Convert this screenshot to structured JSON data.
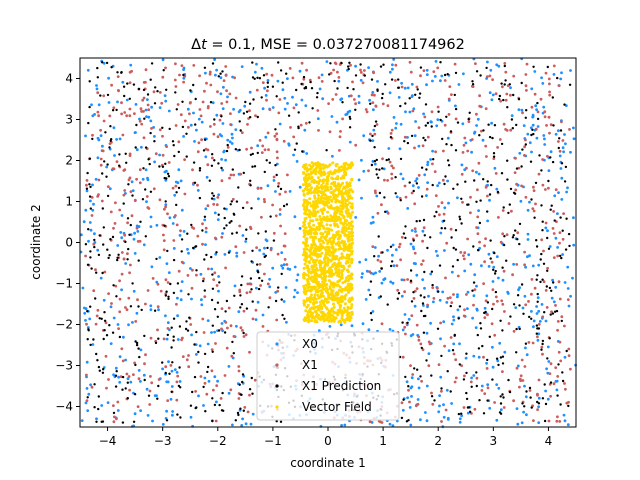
{
  "chart_data": {
    "type": "scatter",
    "title": "Δt = 0.1, MSE = 0.037270081174962",
    "title_prefix": "Δ",
    "title_var": "t",
    "title_rest": " = 0.1, MSE = 0.037270081174962",
    "xlabel": "coordinate 1",
    "ylabel": "coordinate 2",
    "xlim": [
      -4.5,
      4.5
    ],
    "ylim": [
      -4.5,
      4.5
    ],
    "xticks": [
      -4,
      -3,
      -2,
      -1,
      0,
      1,
      2,
      3,
      4
    ],
    "yticks": [
      -4,
      -3,
      -2,
      -1,
      0,
      1,
      2,
      3,
      4
    ],
    "xtick_labels": [
      "−4",
      "−3",
      "−2",
      "−1",
      "0",
      "1",
      "2",
      "3",
      "4"
    ],
    "ytick_labels": [
      "−4",
      "−3",
      "−2",
      "−1",
      "0",
      "1",
      "2",
      "3",
      "4"
    ],
    "grid": false,
    "legend_position": "lower center",
    "series": [
      {
        "name": "X0",
        "color": "#1e90ff",
        "region": {
          "x": [
            -4.5,
            4.5
          ],
          "y": [
            -4.5,
            4.5
          ],
          "exclude_box": {
            "x": [
              -0.5,
              0.5
            ],
            "y": [
              -2.0,
              2.0
            ]
          }
        },
        "points": [
          [
            -4.35,
            4.2
          ],
          [
            -3.9,
            4.3
          ],
          [
            -2.6,
            4.1
          ],
          [
            -1.2,
            4.25
          ],
          [
            0.5,
            4.3
          ],
          [
            1.8,
            4.2
          ],
          [
            3.1,
            4.3
          ],
          [
            4.1,
            4.1
          ],
          [
            -4.2,
            -4.3
          ],
          [
            -3.4,
            -4.1
          ],
          [
            -2.1,
            -4.35
          ],
          [
            -0.7,
            -4.2
          ],
          [
            0.9,
            -4.1
          ],
          [
            2.4,
            -4.3
          ],
          [
            3.6,
            -4.2
          ],
          [
            4.3,
            -4.35
          ],
          [
            -4.4,
            2.6
          ],
          [
            -4.3,
            0.3
          ],
          [
            -4.4,
            -1.9
          ],
          [
            4.4,
            2.2
          ],
          [
            4.35,
            -0.6
          ],
          [
            4.3,
            -2.8
          ],
          [
            -2.9,
            -3.4
          ],
          [
            3.0,
            3.6
          ],
          [
            -3.2,
            3.3
          ],
          [
            2.8,
            -3.5
          ]
        ]
      },
      {
        "name": "X1",
        "color": "#cd5c5c",
        "region": {
          "x": [
            -4.4,
            4.4
          ],
          "y": [
            -4.4,
            4.4
          ],
          "exclude_box": {
            "x": [
              -0.7,
              0.7
            ],
            "y": [
              -2.2,
              2.2
            ]
          }
        },
        "points": [
          [
            -3.8,
            3.7
          ],
          [
            -2.5,
            3.4
          ],
          [
            -1.1,
            3.7
          ],
          [
            0.8,
            3.6
          ],
          [
            2.2,
            3.5
          ],
          [
            3.7,
            3.3
          ],
          [
            -3.6,
            -3.6
          ],
          [
            -2.2,
            -3.7
          ],
          [
            -0.9,
            -3.5
          ],
          [
            1.1,
            -3.6
          ],
          [
            2.6,
            -3.4
          ],
          [
            3.8,
            -3.7
          ],
          [
            -3.9,
            1.8
          ],
          [
            -3.7,
            -0.4
          ],
          [
            -3.8,
            -2.1
          ],
          [
            3.9,
            1.4
          ],
          [
            3.7,
            -0.9
          ],
          [
            3.8,
            -2.3
          ],
          [
            -2.0,
            1.1
          ],
          [
            -1.6,
            -1.2
          ],
          [
            1.8,
            1.3
          ],
          [
            1.9,
            -1.1
          ]
        ]
      },
      {
        "name": "X1 Prediction",
        "color": "#000000",
        "region": {
          "x": [
            -4.4,
            4.4
          ],
          "y": [
            -4.4,
            4.4
          ],
          "exclude_box": {
            "x": [
              -0.7,
              0.7
            ],
            "y": [
              -2.2,
              2.2
            ]
          }
        },
        "points": [
          [
            -3.7,
            3.8
          ],
          [
            -2.4,
            3.5
          ],
          [
            -1.0,
            3.8
          ],
          [
            0.9,
            3.7
          ],
          [
            2.3,
            3.6
          ],
          [
            3.8,
            3.4
          ],
          [
            -3.5,
            -3.7
          ],
          [
            -2.1,
            -3.8
          ],
          [
            -0.8,
            -3.6
          ],
          [
            1.2,
            -3.7
          ],
          [
            2.7,
            -3.5
          ],
          [
            3.9,
            -3.8
          ],
          [
            -4.0,
            1.9
          ],
          [
            -3.8,
            -0.3
          ],
          [
            -3.9,
            -2.2
          ],
          [
            4.0,
            1.5
          ],
          [
            3.8,
            -0.8
          ],
          [
            3.9,
            -2.4
          ],
          [
            -2.1,
            1.2
          ],
          [
            -1.7,
            -1.3
          ],
          [
            1.9,
            1.4
          ],
          [
            2.0,
            -1.2
          ]
        ]
      },
      {
        "name": "Vector Field",
        "color": "#ffd700",
        "region": {
          "x": [
            -0.45,
            0.45
          ],
          "y": [
            -1.95,
            1.95
          ]
        },
        "points": [
          [
            -0.4,
            1.9
          ],
          [
            0.4,
            1.9
          ],
          [
            -0.4,
            -1.9
          ],
          [
            0.4,
            -1.9
          ],
          [
            0.0,
            0.0
          ],
          [
            0.2,
            1.0
          ],
          [
            -0.2,
            -1.0
          ],
          [
            0.1,
            -1.5
          ],
          [
            -0.1,
            1.5
          ]
        ]
      }
    ]
  },
  "legend": {
    "entries": [
      "X0",
      "X1",
      "X1 Prediction",
      "Vector Field"
    ]
  }
}
